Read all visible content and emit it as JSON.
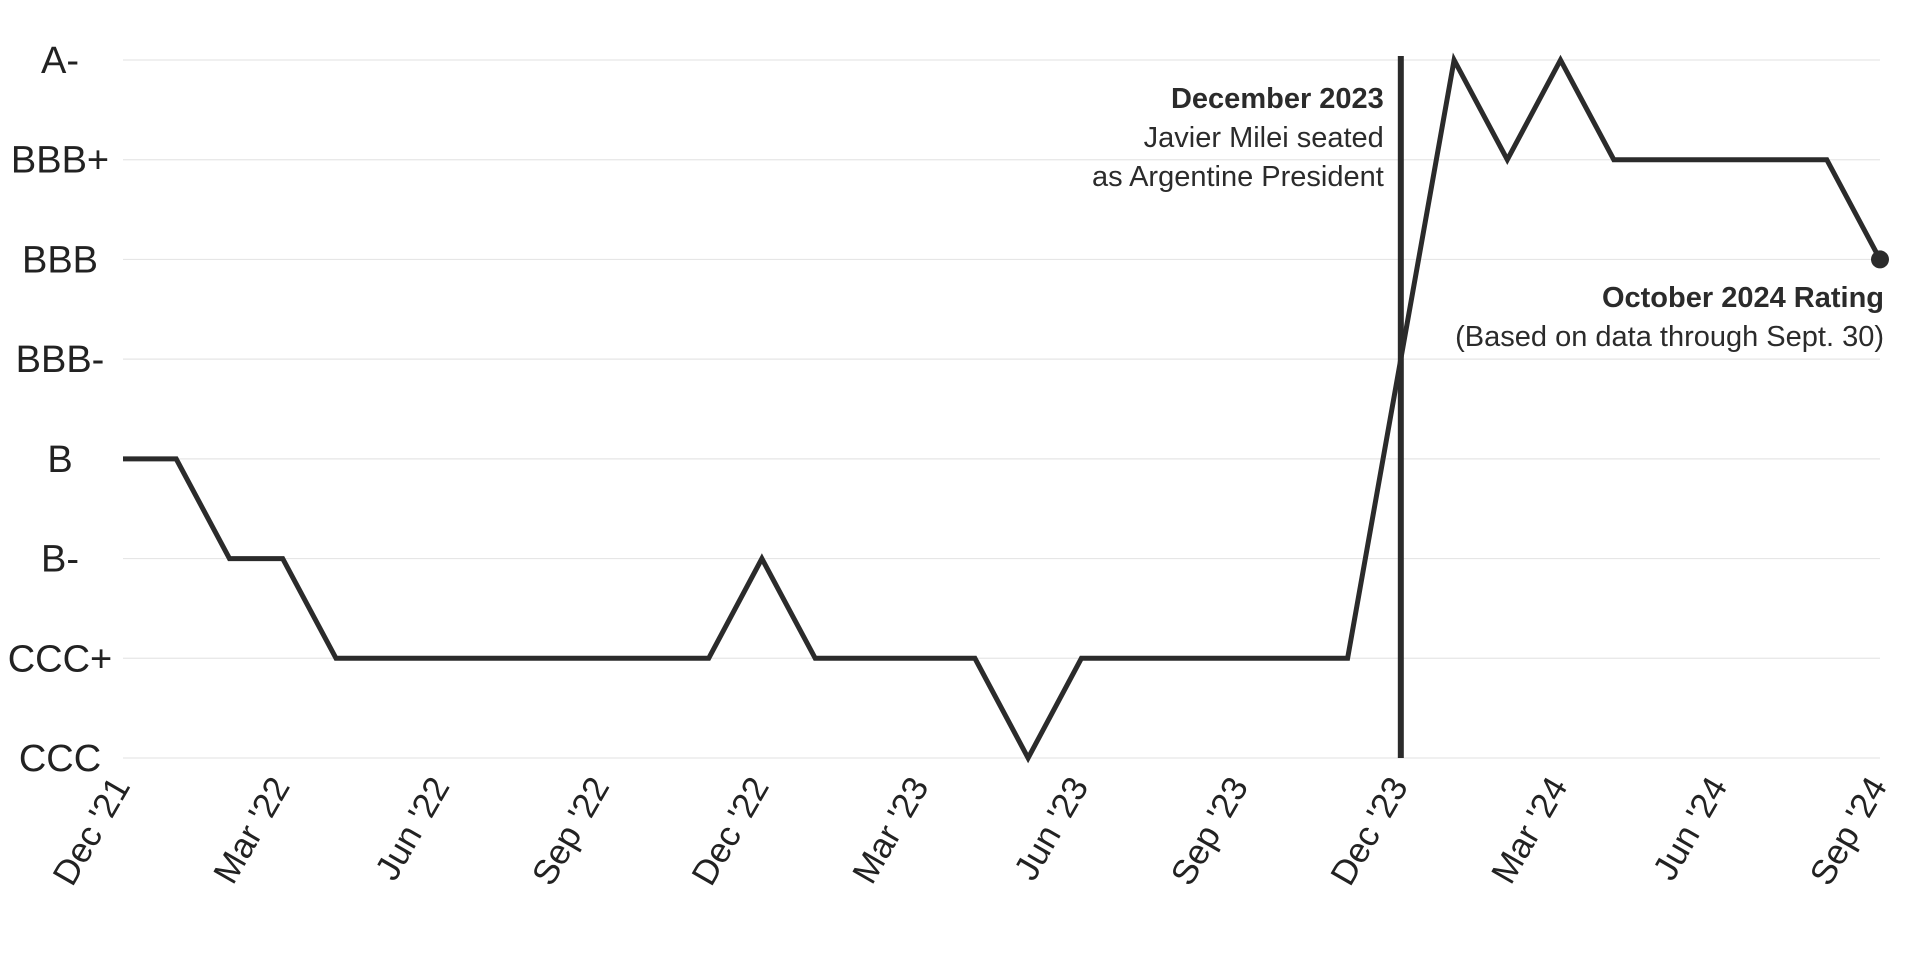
{
  "chart_data": {
    "type": "line",
    "title": "",
    "xlabel": "",
    "ylabel": "",
    "y_categories": [
      "CCC",
      "CCC+",
      "B-",
      "B",
      "BBB-",
      "BBB",
      "BBB+",
      "A-"
    ],
    "x_ticks": [
      "Dec '21",
      "Mar '22",
      "Jun '22",
      "Sep '22",
      "Dec '22",
      "Mar '23",
      "Jun '23",
      "Sep '23",
      "Dec '23",
      "Mar '24",
      "Jun '24",
      "Sep '24"
    ],
    "x_range": [
      "2021-12",
      "2024-09"
    ],
    "grid": true,
    "line_color": "#2b2b2b",
    "gridline_color": "#e6e6e6",
    "series": [
      {
        "x": [
          "2021-12",
          "2022-01",
          "2022-02",
          "2022-03",
          "2022-04",
          "2022-05",
          "2022-06",
          "2022-07",
          "2022-08",
          "2022-09",
          "2022-10",
          "2022-11",
          "2022-12",
          "2023-01",
          "2023-02",
          "2023-03",
          "2023-04",
          "2023-05",
          "2023-06",
          "2023-07",
          "2023-08",
          "2023-09",
          "2023-10",
          "2023-11",
          "2023-12",
          "2024-01",
          "2024-02",
          "2024-03",
          "2024-04",
          "2024-05",
          "2024-06",
          "2024-07",
          "2024-08",
          "2024-09"
        ],
        "values": [
          "B",
          "B",
          "B-",
          "B-",
          "CCC+",
          "CCC+",
          "CCC+",
          "CCC+",
          "CCC+",
          "CCC+",
          "CCC+",
          "CCC+",
          "B-",
          "CCC+",
          "CCC+",
          "CCC+",
          "CCC+",
          "CCC",
          "CCC+",
          "CCC+",
          "CCC+",
          "CCC+",
          "CCC+",
          "CCC+",
          "BBB-",
          "A-",
          "BBB+",
          "A-",
          "BBB+",
          "BBB+",
          "BBB+",
          "BBB+",
          "BBB+",
          "BBB"
        ]
      }
    ],
    "annotations": [
      {
        "x": "2023-12",
        "title": "December 2023",
        "lines": [
          "Javier Milei seated",
          "as Argentine President"
        ]
      },
      {
        "x": "2024-09",
        "title": "October 2024 Rating",
        "lines": [
          "(Based on data through Sept. 30)"
        ]
      }
    ]
  }
}
